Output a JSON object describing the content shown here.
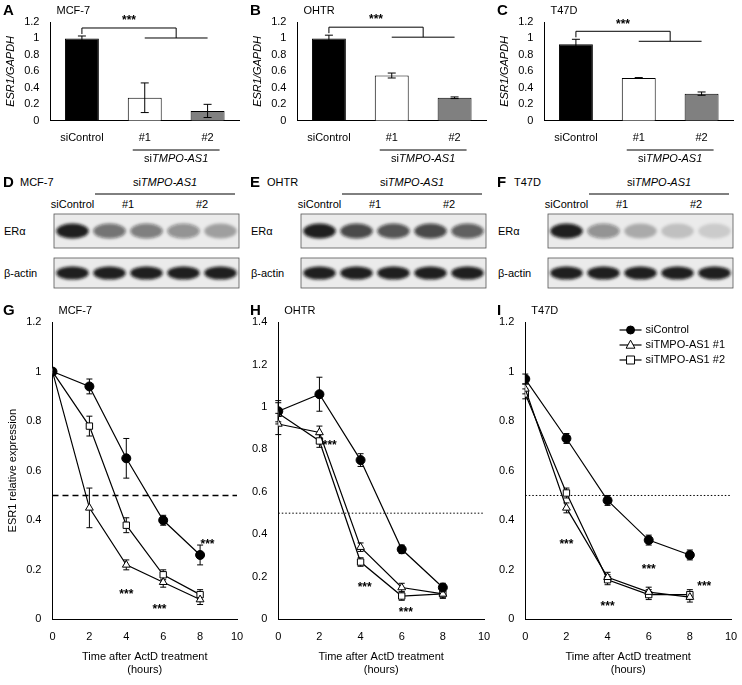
{
  "chart_data": [
    {
      "panel": "A",
      "type": "bar",
      "title": "MCF-7",
      "y_label": "ESR1/GAPDH",
      "categories": [
        "siControl",
        "#1",
        "#2"
      ],
      "values": [
        1.0,
        0.28,
        0.12
      ],
      "errors": [
        0.03,
        0.18,
        0.08
      ],
      "colors": [
        "#000000",
        "#ffffff",
        "#808080"
      ],
      "group_label": "siTMPO-AS1",
      "significance": "***",
      "ylim": [
        0,
        1.2
      ],
      "yticks": [
        0,
        0.2,
        0.4,
        0.6,
        0.8,
        1,
        1.2
      ],
      "grid": false
    },
    {
      "panel": "B",
      "type": "bar",
      "title": "OHTR",
      "y_label": "ESR1/GAPDH",
      "categories": [
        "siControl",
        "#1",
        "#2"
      ],
      "values": [
        1.0,
        0.55,
        0.28
      ],
      "errors": [
        0.04,
        0.03,
        0.01
      ],
      "colors": [
        "#000000",
        "#ffffff",
        "#808080"
      ],
      "group_label": "siTMPO-AS1",
      "significance": "***",
      "ylim": [
        0,
        1.2
      ],
      "yticks": [
        0,
        0.2,
        0.4,
        0.6,
        0.8,
        1,
        1.2
      ],
      "grid": false
    },
    {
      "panel": "C",
      "type": "bar",
      "title": "T47D",
      "y_label": "ESR1/GAPDH",
      "categories": [
        "siControl",
        "#1",
        "#2"
      ],
      "values": [
        0.93,
        0.52,
        0.33
      ],
      "errors": [
        0.06,
        0.005,
        0.02
      ],
      "colors": [
        "#000000",
        "#ffffff",
        "#808080"
      ],
      "group_label": "siTMPO-AS1",
      "significance": "***",
      "ylim": [
        0,
        1.2
      ],
      "yticks": [
        0,
        0.2,
        0.4,
        0.6,
        0.8,
        1,
        1.2
      ],
      "grid": false
    },
    {
      "panel": "G",
      "type": "line",
      "title": "MCF-7",
      "y_label": "ESR1 relative expression",
      "x_label": [
        "Time after ActD treatment",
        "(hours)"
      ],
      "x": [
        0,
        2,
        4,
        6,
        8
      ],
      "series": [
        {
          "color": "#000000",
          "marker": "filled_circle",
          "values": [
            1.0,
            0.94,
            0.65,
            0.4,
            0.26
          ],
          "errors": [
            0,
            0.03,
            0.08,
            0.02,
            0.04
          ]
        },
        {
          "color": "#000000",
          "marker": "open_triangle",
          "values": [
            1.0,
            0.45,
            0.22,
            0.15,
            0.08
          ],
          "errors": [
            0,
            0.08,
            0.02,
            0.02,
            0.02
          ]
        },
        {
          "color": "#000000",
          "marker": "open_square",
          "values": [
            1.0,
            0.78,
            0.38,
            0.18,
            0.1
          ],
          "errors": [
            0,
            0.04,
            0.03,
            0.02,
            0.02
          ]
        }
      ],
      "xlim": [
        0,
        10
      ],
      "xticks": [
        0,
        2,
        4,
        6,
        8,
        10
      ],
      "ylim": [
        0,
        1.2
      ],
      "yticks": [
        0,
        0.2,
        0.4,
        0.6,
        0.8,
        1,
        1.2
      ],
      "reference_line": {
        "value": 0.5,
        "line_style": "dashed"
      },
      "annotations": [
        {
          "text": "***",
          "x": 4.0,
          "y": 0.1
        },
        {
          "text": "***",
          "x": 5.8,
          "y": 0.04
        },
        {
          "text": "***",
          "x": 8.4,
          "y": 0.3
        }
      ],
      "grid": false
    },
    {
      "panel": "H",
      "type": "line",
      "title": "OHTR",
      "x_label": [
        "Time after ActD treatment",
        "(hours)"
      ],
      "x": [
        0,
        2,
        4,
        6,
        8
      ],
      "series": [
        {
          "color": "#000000",
          "marker": "filled_circle",
          "values": [
            0.98,
            1.06,
            0.75,
            0.33,
            0.15
          ],
          "errors": [
            0.05,
            0.08,
            0.03,
            0.02,
            0.02
          ]
        },
        {
          "color": "#000000",
          "marker": "open_triangle",
          "values": [
            0.92,
            0.88,
            0.34,
            0.15,
            0.12
          ],
          "errors": [
            0.05,
            0.03,
            0.02,
            0.02,
            0.02
          ]
        },
        {
          "color": "#000000",
          "marker": "open_square",
          "values": [
            0.97,
            0.84,
            0.27,
            0.11,
            0.12
          ],
          "errors": [
            0.05,
            0.03,
            0.02,
            0.02,
            0.02
          ]
        }
      ],
      "xlim": [
        0,
        10
      ],
      "xticks": [
        0,
        2,
        4,
        6,
        8,
        10
      ],
      "ylim": [
        0,
        1.4
      ],
      "yticks": [
        0,
        0.2,
        0.4,
        0.6,
        0.8,
        1,
        1.2,
        1.4
      ],
      "reference_line": {
        "value": 0.5,
        "line_style": "dotted"
      },
      "annotations": [
        {
          "text": "***",
          "x": 2.5,
          "y": 0.82
        },
        {
          "text": "***",
          "x": 4.2,
          "y": 0.15
        },
        {
          "text": "***",
          "x": 6.2,
          "y": 0.03
        }
      ],
      "grid": false
    },
    {
      "panel": "I",
      "type": "line",
      "title": "T47D",
      "x_label": [
        "Time after ActD treatment",
        "(hours)"
      ],
      "x": [
        0,
        2,
        4,
        6,
        8
      ],
      "series": [
        {
          "name": "siControl",
          "color": "#000000",
          "marker": "filled_circle",
          "values": [
            0.97,
            0.73,
            0.48,
            0.32,
            0.26
          ],
          "errors": [
            0.02,
            0.02,
            0.02,
            0.02,
            0.02
          ]
        },
        {
          "name": "siTMPO-AS1 #1",
          "color": "#000000",
          "marker": "open_triangle",
          "values": [
            0.93,
            0.45,
            0.17,
            0.11,
            0.09
          ],
          "errors": [
            0.02,
            0.02,
            0.02,
            0.02,
            0.02
          ]
        },
        {
          "name": "siTMPO-AS1 #2",
          "color": "#000000",
          "marker": "open_square",
          "values": [
            0.91,
            0.51,
            0.16,
            0.1,
            0.1
          ],
          "errors": [
            0.02,
            0.02,
            0.02,
            0.02,
            0.02
          ]
        }
      ],
      "xlim": [
        0,
        10
      ],
      "xticks": [
        0,
        2,
        4,
        6,
        8,
        10
      ],
      "ylim": [
        0,
        1.2
      ],
      "yticks": [
        0,
        0.2,
        0.4,
        0.6,
        0.8,
        1,
        1.2
      ],
      "reference_line": {
        "value": 0.5,
        "line_style": "dotted"
      },
      "annotations": [
        {
          "text": "***",
          "x": 2.0,
          "y": 0.3
        },
        {
          "text": "***",
          "x": 4.0,
          "y": 0.05
        },
        {
          "text": "***",
          "x": 6.0,
          "y": 0.2
        },
        {
          "text": "***",
          "x": 8.7,
          "y": 0.13
        }
      ],
      "legend": "upper right",
      "grid": false
    }
  ],
  "blots": [
    {
      "panel": "D",
      "title": "MCF-7",
      "group_label": "siTMPO-AS1",
      "lane_labels": [
        "siControl",
        "#1",
        "#2"
      ],
      "lanes_per_label": [
        1,
        2,
        2
      ],
      "rows": [
        {
          "label": "ERα",
          "bands": [
            1.0,
            0.6,
            0.55,
            0.45,
            0.35
          ]
        },
        {
          "label": "β-actin",
          "bands": [
            1.0,
            1.0,
            1.0,
            1.0,
            1.0
          ]
        }
      ]
    },
    {
      "panel": "E",
      "title": "OHTR",
      "group_label": "siTMPO-AS1",
      "lane_labels": [
        "siControl",
        "#1",
        "#2"
      ],
      "lanes_per_label": [
        1,
        2,
        2
      ],
      "rows": [
        {
          "label": "ERα",
          "bands": [
            1.0,
            0.8,
            0.75,
            0.8,
            0.7
          ]
        },
        {
          "label": "β-actin",
          "bands": [
            1.0,
            1.0,
            1.0,
            1.0,
            1.0
          ]
        }
      ]
    },
    {
      "panel": "F",
      "title": "T47D",
      "group_label": "siTMPO-AS1",
      "lane_labels": [
        "siControl",
        "#1",
        "#2"
      ],
      "lanes_per_label": [
        1,
        2,
        2
      ],
      "rows": [
        {
          "label": "ERα",
          "bands": [
            1.0,
            0.45,
            0.3,
            0.2,
            0.15
          ]
        },
        {
          "label": "β-actin",
          "bands": [
            1.0,
            1.0,
            1.0,
            1.0,
            1.0
          ]
        }
      ]
    }
  ]
}
